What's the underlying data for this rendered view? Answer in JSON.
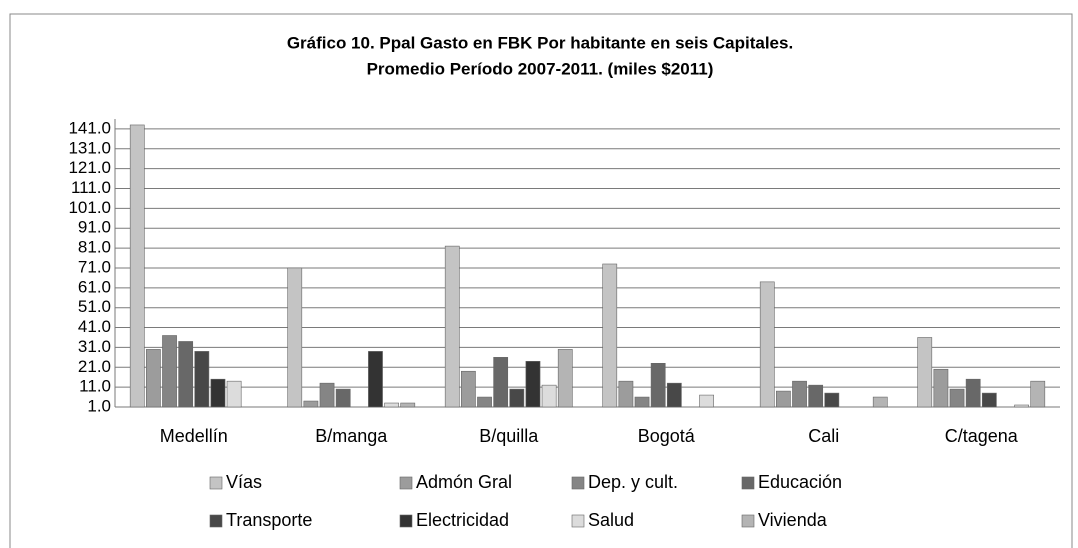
{
  "chart_data": {
    "type": "bar",
    "title": "Gráfico 10. Ppal Gasto en FBK Por habitante en  seis Capitales.",
    "subtitle": "Promedio Período 2007-2011. (miles $2011)",
    "categories": [
      "Medellín",
      "B/manga",
      "B/quilla",
      "Bogotá",
      "Cali",
      "C/tagena"
    ],
    "series": [
      {
        "name": "Vías",
        "color": "#c4c4c4",
        "values": [
          143,
          71,
          82,
          73,
          64,
          36
        ]
      },
      {
        "name": "Admón Gral",
        "color": "#9c9c9c",
        "values": [
          30,
          4,
          19,
          14,
          9,
          20
        ]
      },
      {
        "name": "Dep. y cult.",
        "color": "#858585",
        "values": [
          37,
          13,
          6,
          6,
          14,
          10
        ]
      },
      {
        "name": "Educación",
        "color": "#686868",
        "values": [
          34,
          10,
          26,
          23,
          12,
          15
        ]
      },
      {
        "name": "Transporte",
        "color": "#484848",
        "values": [
          29,
          1,
          10,
          13,
          8,
          8
        ]
      },
      {
        "name": "Electricidad",
        "color": "#333333",
        "values": [
          15,
          29,
          24,
          1,
          1,
          1
        ]
      },
      {
        "name": "Salud",
        "color": "#dcdcdc",
        "values": [
          14,
          3,
          12,
          7,
          1,
          2
        ]
      },
      {
        "name": "Vivienda",
        "color": "#b4b4b4",
        "values": [
          1,
          3,
          30,
          1,
          6,
          14
        ]
      }
    ],
    "ylim": [
      1,
      146
    ],
    "yticks": [
      {
        "value": 1,
        "label": "1.0"
      },
      {
        "value": 11,
        "label": "11.0"
      },
      {
        "value": 21,
        "label": "21.0"
      },
      {
        "value": 31,
        "label": "31.0"
      },
      {
        "value": 41,
        "label": "41.0"
      },
      {
        "value": 51,
        "label": "51.0"
      },
      {
        "value": 61,
        "label": "61.0"
      },
      {
        "value": 71,
        "label": "71.0"
      },
      {
        "value": 81,
        "label": "81.0"
      },
      {
        "value": 91,
        "label": "91.0"
      },
      {
        "value": 101,
        "label": "101.0"
      },
      {
        "value": 111,
        "label": "111.0"
      },
      {
        "value": 121,
        "label": "121.0"
      },
      {
        "value": 131,
        "label": "131.0"
      },
      {
        "value": 141,
        "label": "141.0"
      }
    ],
    "grid": true
  }
}
